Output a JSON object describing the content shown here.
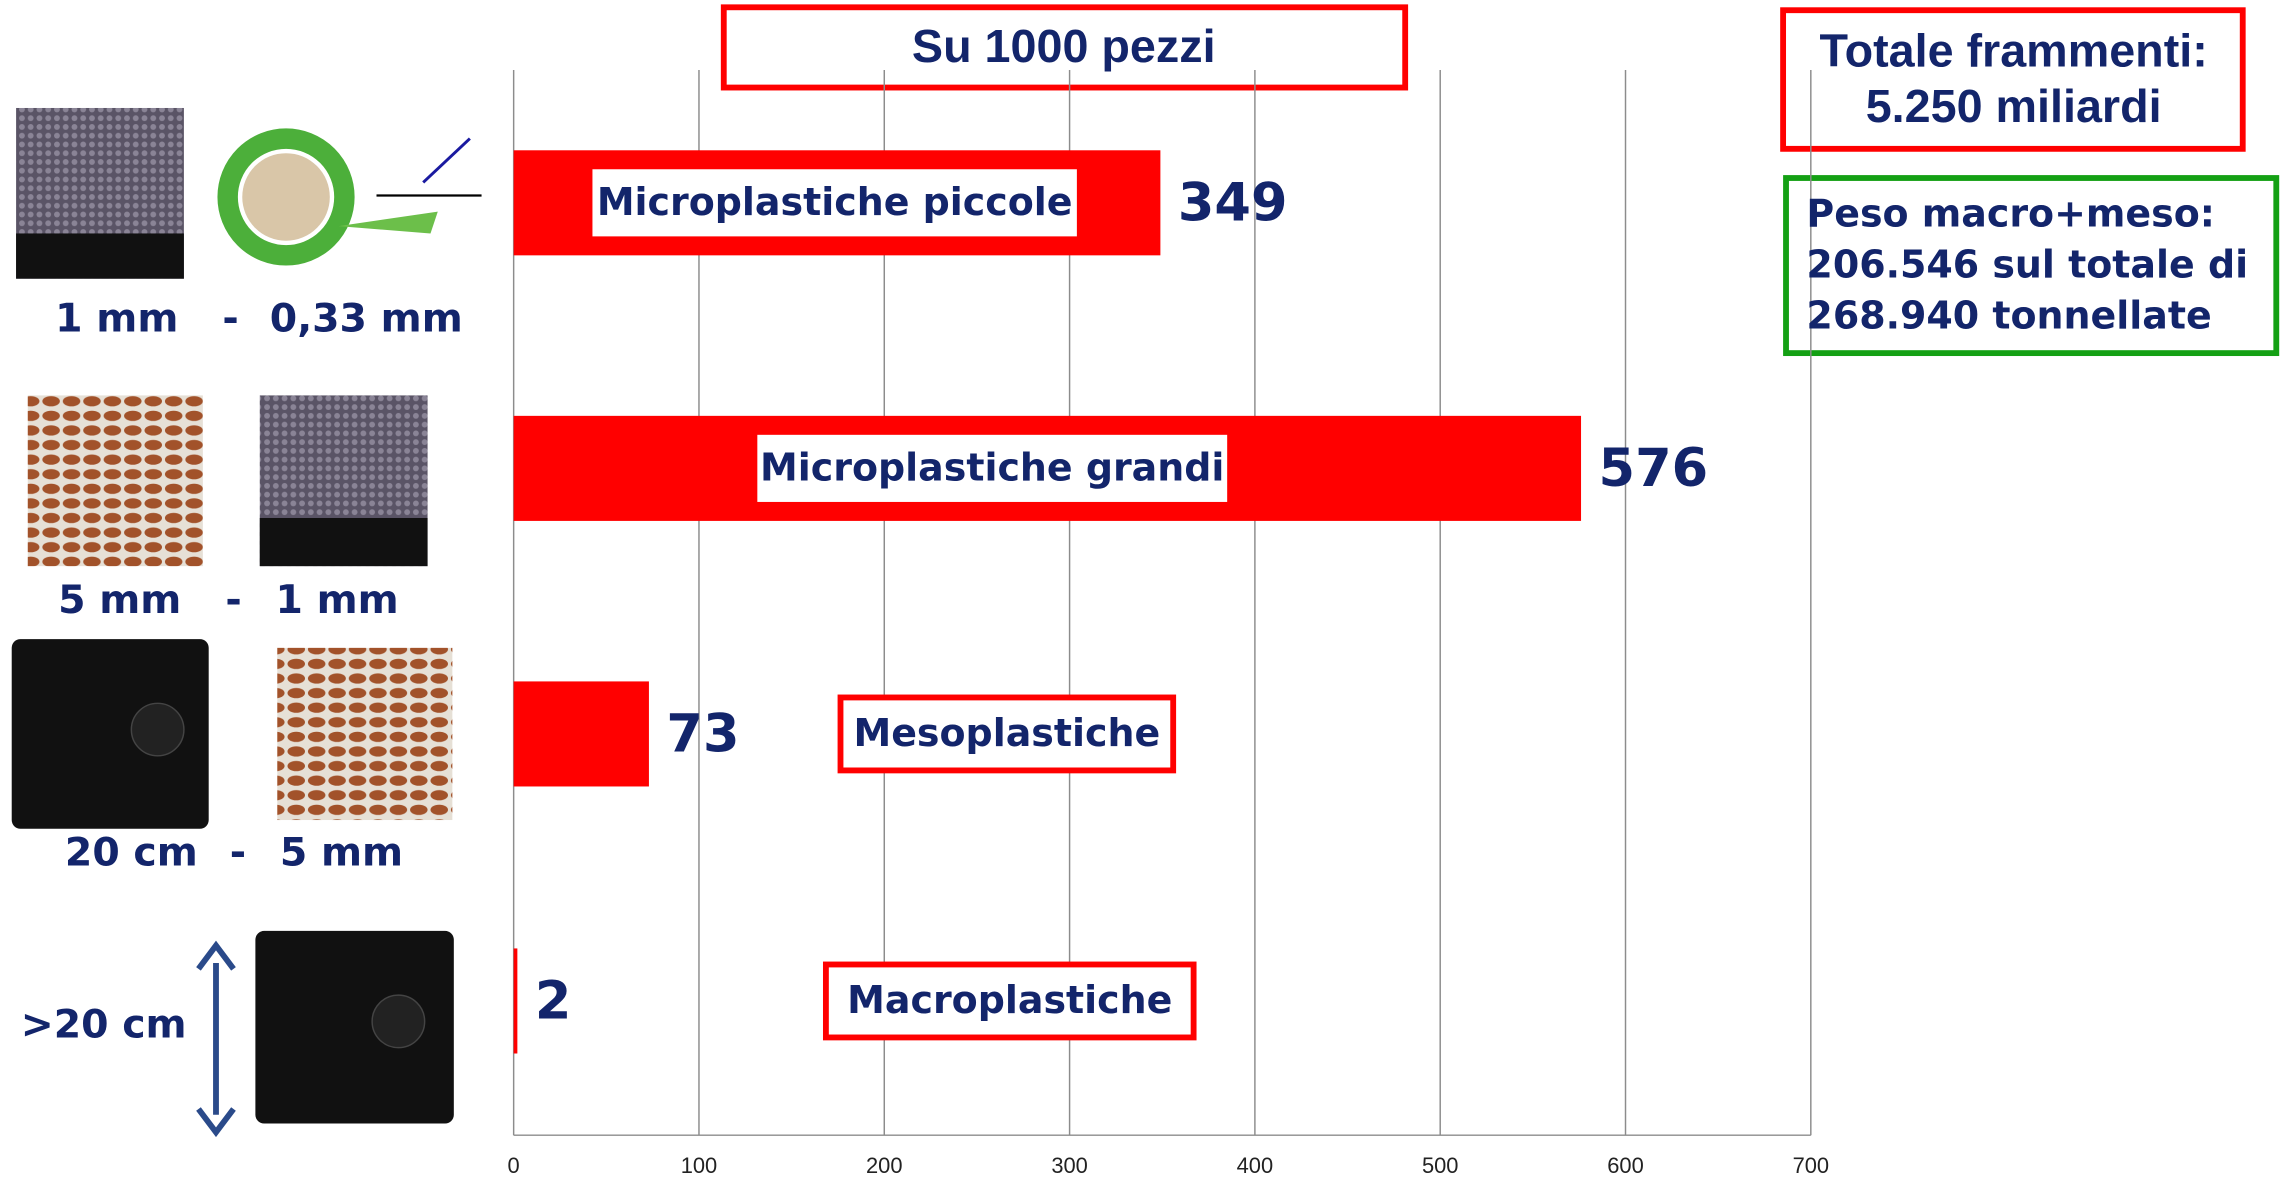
{
  "chart_data": {
    "type": "bar",
    "orientation": "horizontal",
    "title": "Su 1000 pezzi",
    "categories": [
      "Microplastiche piccole",
      "Microplastiche grandi",
      "Mesoplastiche",
      "Macroplastiche"
    ],
    "values": [
      349,
      576,
      73,
      2
    ],
    "color": "#ff0000",
    "xlim": [
      0,
      700
    ],
    "xticks": [
      0,
      100,
      200,
      300,
      400,
      500,
      600,
      700
    ],
    "grid": true,
    "size_labels": [
      [
        "1 mm",
        "-",
        "0,33 mm"
      ],
      [
        "5 mm",
        "-",
        "1 mm"
      ],
      [
        "20 cm",
        "-",
        "5 mm"
      ],
      [
        ">20 cm"
      ]
    ],
    "annotations": {
      "total": [
        "Totale frammenti:",
        "5.250 miliardi"
      ],
      "weight": [
        "Peso macro+meso:",
        "206.546 sul totale di",
        "268.940 tonnellate"
      ]
    }
  }
}
